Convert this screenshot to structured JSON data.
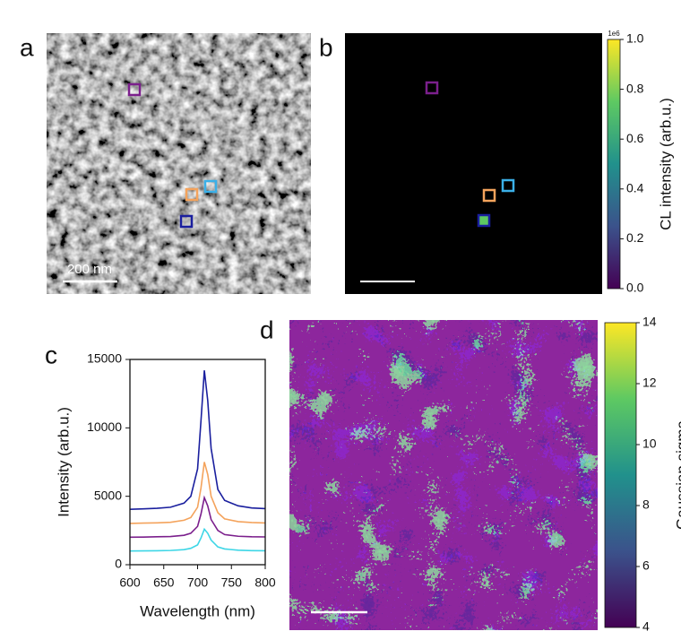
{
  "panel_labels": [
    "a",
    "b",
    "c",
    "d"
  ],
  "scale_bar_label": "200 nm",
  "chart_data": [
    {
      "type": "line",
      "xlabel": "Wavelength (nm)",
      "ylabel": "Intensity (arb.u.)",
      "x": [
        600,
        620,
        640,
        660,
        680,
        690,
        700,
        705,
        710,
        715,
        720,
        730,
        740,
        760,
        780,
        800
      ],
      "xlim": [
        600,
        800
      ],
      "xticks": [
        600,
        650,
        700,
        750,
        800
      ],
      "ylim": [
        0,
        15000
      ],
      "yticks": [
        0,
        5000,
        10000,
        15000
      ],
      "series": [
        {
          "color": "#1a1f9e",
          "values": [
            4050,
            4080,
            4120,
            4200,
            4500,
            5000,
            7000,
            10500,
            14200,
            12000,
            8500,
            5500,
            4700,
            4300,
            4150,
            4100
          ]
        },
        {
          "color": "#f4a35c",
          "values": [
            3020,
            3040,
            3060,
            3100,
            3250,
            3450,
            4200,
            5600,
            7500,
            6600,
            5000,
            3800,
            3350,
            3150,
            3080,
            3050
          ]
        },
        {
          "color": "#7b1f8c",
          "values": [
            2010,
            2020,
            2040,
            2060,
            2150,
            2300,
            2800,
            3700,
            4900,
            4300,
            3300,
            2500,
            2200,
            2080,
            2040,
            2030
          ]
        },
        {
          "color": "#3dd6e6",
          "values": [
            1000,
            1010,
            1020,
            1040,
            1100,
            1200,
            1450,
            1950,
            2600,
            2300,
            1800,
            1300,
            1150,
            1060,
            1030,
            1020
          ]
        }
      ]
    },
    {
      "type": "colorbar",
      "colormap": "viridis",
      "label": "CL intensity (arb.u.)",
      "offset_label": "1e6",
      "ylim": [
        0,
        1
      ],
      "yticks": [
        {
          "value": 0,
          "label": "0.0"
        },
        0.2,
        0.4,
        0.6,
        0.8,
        {
          "value": 1,
          "label": "1.0"
        }
      ]
    },
    {
      "type": "colorbar",
      "colormap": "viridis",
      "label": "Gaussian sigma",
      "ylim": [
        4,
        14
      ],
      "yticks": [
        4,
        6,
        8,
        10,
        12,
        14
      ]
    }
  ]
}
